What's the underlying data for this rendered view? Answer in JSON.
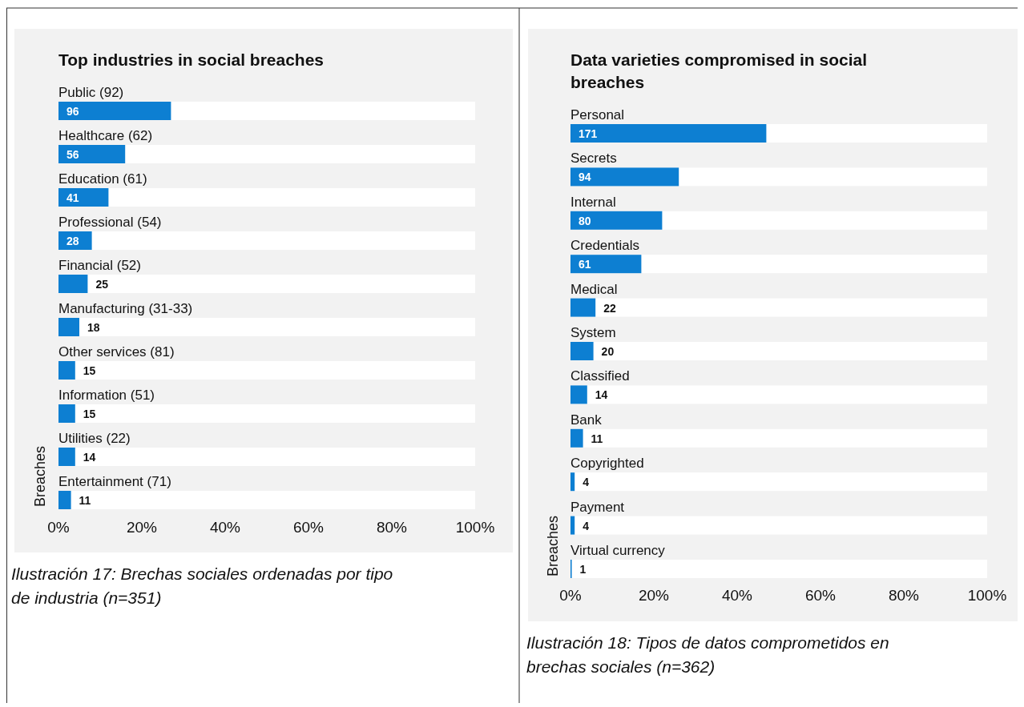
{
  "chart_data": [
    {
      "type": "bar",
      "orientation": "horizontal",
      "title": "Top industries in social breaches",
      "ylabel": "Breaches",
      "color": "#0d7fd2",
      "categories": [
        "Public (92)",
        "Healthcare (62)",
        "Education (61)",
        "Professional (54)",
        "Financial (52)",
        "Manufacturing (31-33)",
        "Other services (81)",
        "Information (51)",
        "Utilities (22)",
        "Entertainment (71)"
      ],
      "values": [
        27,
        16,
        12,
        8,
        7,
        5,
        4,
        4,
        4,
        3
      ],
      "xlim": [
        0,
        100
      ],
      "xticks": [
        {
          "value": 0,
          "label": "0%"
        },
        {
          "value": 20,
          "label": "20%"
        },
        {
          "value": 40,
          "label": "40%"
        },
        {
          "value": 60,
          "label": "60%"
        },
        {
          "value": 80,
          "label": "80%"
        },
        {
          "value": 100,
          "label": "100%"
        }
      ],
      "annotations": [
        "96",
        "56",
        "41",
        "28",
        "25",
        "18",
        "15",
        "15",
        "14",
        "11",
        "Ilustración 17: Brechas sociales ordenadas por tipo de industria (n=351)"
      ]
    },
    {
      "type": "bar",
      "orientation": "horizontal",
      "title": "Data varieties compromised in social breaches",
      "ylabel": "Breaches",
      "color": "#0d7fd2",
      "categories": [
        "Personal",
        "Secrets",
        "Internal",
        "Credentials",
        "Medical",
        "System",
        "Classified",
        "Bank",
        "Copyrighted",
        "Payment",
        "Virtual currency"
      ],
      "values": [
        47,
        26,
        22,
        17,
        6,
        5.5,
        4,
        3,
        1,
        1,
        0.3
      ],
      "xlim": [
        0,
        100
      ],
      "xticks": [
        {
          "value": 0,
          "label": "0%"
        },
        {
          "value": 20,
          "label": "20%"
        },
        {
          "value": 40,
          "label": "40%"
        },
        {
          "value": 60,
          "label": "60%"
        },
        {
          "value": 80,
          "label": "80%"
        },
        {
          "value": 100,
          "label": "100%"
        }
      ],
      "annotations": [
        "171",
        "94",
        "80",
        "61",
        "22",
        "20",
        "14",
        "11",
        "4",
        "4",
        "1",
        "Ilustración 18: Tipos de datos comprometidos en brechas sociales (n=362)"
      ]
    }
  ]
}
